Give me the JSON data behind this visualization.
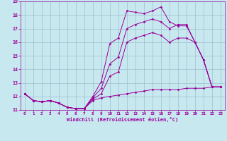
{
  "xlabel": "Windchill (Refroidissement éolien,°C)",
  "xlim": [
    -0.5,
    23.5
  ],
  "ylim": [
    11,
    19
  ],
  "xticks": [
    0,
    1,
    2,
    3,
    4,
    5,
    6,
    7,
    8,
    9,
    10,
    11,
    12,
    13,
    14,
    15,
    16,
    17,
    18,
    19,
    20,
    21,
    22,
    23
  ],
  "yticks": [
    11,
    12,
    13,
    14,
    15,
    16,
    17,
    18,
    19
  ],
  "bg_color": "#c8e8f0",
  "line_color": "#990099",
  "grid_color": "#9bbfcc",
  "series": [
    [
      12.2,
      11.7,
      11.6,
      11.7,
      11.5,
      11.2,
      11.1,
      11.1,
      12.0,
      13.1,
      15.9,
      16.3,
      18.3,
      18.2,
      18.1,
      18.3,
      18.6,
      17.5,
      17.2,
      17.2,
      16.0,
      14.7,
      12.7,
      12.7
    ],
    [
      12.2,
      11.7,
      11.6,
      11.7,
      11.5,
      11.2,
      11.1,
      11.1,
      11.9,
      12.6,
      14.4,
      14.9,
      17.0,
      17.3,
      17.5,
      17.7,
      17.5,
      17.0,
      17.3,
      17.3,
      16.0,
      14.7,
      12.7,
      12.7
    ],
    [
      12.2,
      11.7,
      11.6,
      11.7,
      11.5,
      11.2,
      11.1,
      11.1,
      11.8,
      12.2,
      13.5,
      13.8,
      16.0,
      16.3,
      16.5,
      16.7,
      16.5,
      16.0,
      16.3,
      16.3,
      16.0,
      14.7,
      12.7,
      12.7
    ],
    [
      12.2,
      11.7,
      11.6,
      11.7,
      11.5,
      11.2,
      11.1,
      11.1,
      11.7,
      11.9,
      12.0,
      12.1,
      12.2,
      12.3,
      12.4,
      12.5,
      12.5,
      12.5,
      12.5,
      12.6,
      12.6,
      12.6,
      12.7,
      12.7
    ]
  ]
}
